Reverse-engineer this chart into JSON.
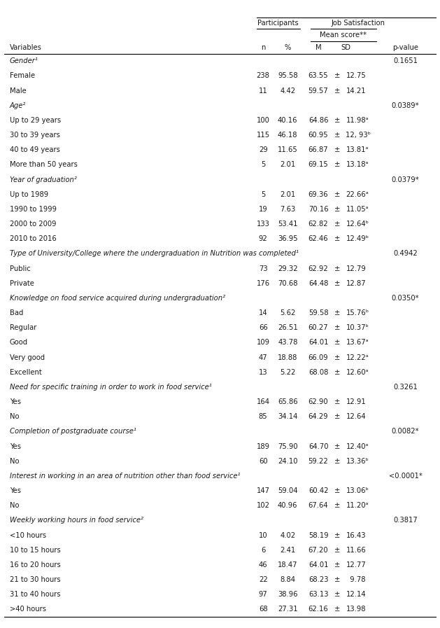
{
  "rows": [
    {
      "label": "Gender¹",
      "n": "",
      "pct": "",
      "M": "",
      "pm": "",
      "SD": "",
      "pvalue": "0.1651",
      "type": "category"
    },
    {
      "label": "Female",
      "n": "238",
      "pct": "95.58",
      "M": "63.55",
      "pm": "±",
      "SD": "12.75",
      "pvalue": "",
      "type": "data"
    },
    {
      "label": "Male",
      "n": "11",
      "pct": "4.42",
      "M": "59.57",
      "pm": "±",
      "SD": "14.21",
      "pvalue": "",
      "type": "data"
    },
    {
      "label": "Age²",
      "n": "",
      "pct": "",
      "M": "",
      "pm": "",
      "SD": "",
      "pvalue": "0.0389*",
      "type": "category"
    },
    {
      "label": "Up to 29 years",
      "n": "100",
      "pct": "40.16",
      "M": "64.86",
      "pm": "±",
      "SD": "11.98ᵃ",
      "pvalue": "",
      "type": "data"
    },
    {
      "label": "30 to 39 years",
      "n": "115",
      "pct": "46.18",
      "M": "60.95",
      "pm": "±",
      "SD": "12, 93ᵇ",
      "pvalue": "",
      "type": "data"
    },
    {
      "label": "40 to 49 years",
      "n": "29",
      "pct": "11.65",
      "M": "66.87",
      "pm": "±",
      "SD": "13.81ᵃ",
      "pvalue": "",
      "type": "data"
    },
    {
      "label": "More than 50 years",
      "n": "5",
      "pct": "2.01",
      "M": "69.15",
      "pm": "±",
      "SD": "13.18ᵃ",
      "pvalue": "",
      "type": "data"
    },
    {
      "label": "Year of graduation²",
      "n": "",
      "pct": "",
      "M": "",
      "pm": "",
      "SD": "",
      "pvalue": "0.0379*",
      "type": "category"
    },
    {
      "label": "Up to 1989",
      "n": "5",
      "pct": "2.01",
      "M": "69.36",
      "pm": "±",
      "SD": "22.66ᵃ",
      "pvalue": "",
      "type": "data"
    },
    {
      "label": "1990 to 1999",
      "n": "19",
      "pct": "7.63",
      "M": "70.16",
      "pm": "±",
      "SD": "11.05ᵃ",
      "pvalue": "",
      "type": "data"
    },
    {
      "label": "2000 to 2009",
      "n": "133",
      "pct": "53.41",
      "M": "62.82",
      "pm": "±",
      "SD": "12.64ᵇ",
      "pvalue": "",
      "type": "data"
    },
    {
      "label": "2010 to 2016",
      "n": "92",
      "pct": "36.95",
      "M": "62.46",
      "pm": "±",
      "SD": "12.49ᵇ",
      "pvalue": "",
      "type": "data"
    },
    {
      "label": "Type of University/College where the undergraduation in Nutrition was completed¹",
      "n": "",
      "pct": "",
      "M": "",
      "pm": "",
      "SD": "",
      "pvalue": "0.4942",
      "type": "category"
    },
    {
      "label": "Public",
      "n": "73",
      "pct": "29.32",
      "M": "62.92",
      "pm": "±",
      "SD": "12.79",
      "pvalue": "",
      "type": "data"
    },
    {
      "label": "Private",
      "n": "176",
      "pct": "70.68",
      "M": "64.48",
      "pm": "±",
      "SD": "12.87",
      "pvalue": "",
      "type": "data"
    },
    {
      "label": "Knowledge on food service acquired during undergraduation²",
      "n": "",
      "pct": "",
      "M": "",
      "pm": "",
      "SD": "",
      "pvalue": "0.0350*",
      "type": "category"
    },
    {
      "label": "Bad",
      "n": "14",
      "pct": "5.62",
      "M": "59.58",
      "pm": "±",
      "SD": "15.76ᵇ",
      "pvalue": "",
      "type": "data"
    },
    {
      "label": "Regular",
      "n": "66",
      "pct": "26.51",
      "M": "60.27",
      "pm": "±",
      "SD": "10.37ᵇ",
      "pvalue": "",
      "type": "data"
    },
    {
      "label": "Good",
      "n": "109",
      "pct": "43.78",
      "M": "64.01",
      "pm": "±",
      "SD": "13.67ᵃ",
      "pvalue": "",
      "type": "data"
    },
    {
      "label": "Very good",
      "n": "47",
      "pct": "18.88",
      "M": "66.09",
      "pm": "±",
      "SD": "12.22ᵃ",
      "pvalue": "",
      "type": "data"
    },
    {
      "label": "Excellent",
      "n": "13",
      "pct": "5.22",
      "M": "68.08",
      "pm": "±",
      "SD": "12.60ᵃ",
      "pvalue": "",
      "type": "data"
    },
    {
      "label": "Need for specific training in order to work in food service¹",
      "n": "",
      "pct": "",
      "M": "",
      "pm": "",
      "SD": "",
      "pvalue": "0.3261",
      "type": "category"
    },
    {
      "label": "Yes",
      "n": "164",
      "pct": "65.86",
      "M": "62.90",
      "pm": "±",
      "SD": "12.91",
      "pvalue": "",
      "type": "data"
    },
    {
      "label": "No",
      "n": "85",
      "pct": "34.14",
      "M": "64.29",
      "pm": "±",
      "SD": "12.64",
      "pvalue": "",
      "type": "data"
    },
    {
      "label": "Completion of postgraduate course¹",
      "n": "",
      "pct": "",
      "M": "",
      "pm": "",
      "SD": "",
      "pvalue": "0.0082*",
      "type": "category"
    },
    {
      "label": "Yes",
      "n": "189",
      "pct": "75.90",
      "M": "64.70",
      "pm": "±",
      "SD": "12.40ᵃ",
      "pvalue": "",
      "type": "data"
    },
    {
      "label": "No",
      "n": "60",
      "pct": "24.10",
      "M": "59.22",
      "pm": "±",
      "SD": "13.36ᵇ",
      "pvalue": "",
      "type": "data"
    },
    {
      "label": "Interest in working in an area of nutrition other than food service¹",
      "n": "",
      "pct": "",
      "M": "",
      "pm": "",
      "SD": "",
      "pvalue": "<0.0001*",
      "type": "category"
    },
    {
      "label": "Yes",
      "n": "147",
      "pct": "59.04",
      "M": "60.42",
      "pm": "±",
      "SD": "13.06ᵇ",
      "pvalue": "",
      "type": "data"
    },
    {
      "label": "No",
      "n": "102",
      "pct": "40.96",
      "M": "67.64",
      "pm": "±",
      "SD": "11.20ᵃ",
      "pvalue": "",
      "type": "data"
    },
    {
      "label": "Weekly working hours in food service²",
      "n": "",
      "pct": "",
      "M": "",
      "pm": "",
      "SD": "",
      "pvalue": "0.3817",
      "type": "category"
    },
    {
      "label": "<10 hours",
      "n": "10",
      "pct": "4.02",
      "M": "58.19",
      "pm": "±",
      "SD": "16.43",
      "pvalue": "",
      "type": "data"
    },
    {
      "label": "10 to 15 hours",
      "n": "6",
      "pct": "2.41",
      "M": "67.20",
      "pm": "±",
      "SD": "11.66",
      "pvalue": "",
      "type": "data"
    },
    {
      "label": "16 to 20 hours",
      "n": "46",
      "pct": "18.47",
      "M": "64.01",
      "pm": "±",
      "SD": "12.77",
      "pvalue": "",
      "type": "data"
    },
    {
      "label": "21 to 30 hours",
      "n": "22",
      "pct": "8.84",
      "M": "68.23",
      "pm": "±",
      "SD": "  9.78",
      "pvalue": "",
      "type": "data"
    },
    {
      "label": "31 to 40 hours",
      "n": "97",
      "pct": "38.96",
      "M": "63.13",
      "pm": "±",
      "SD": "12.14",
      "pvalue": "",
      "type": "data"
    },
    {
      ">40 hours": ">40 hours",
      "label": ">40 hours",
      "n": "68",
      "pct": "27.31",
      "M": "62.16",
      "pm": "±",
      "SD": "13.98",
      "pvalue": "",
      "type": "data"
    }
  ],
  "col_x": {
    "label": 0.012,
    "n": 0.6,
    "pct": 0.657,
    "M": 0.728,
    "pm": 0.772,
    "SD": 0.792,
    "pvalue": 0.93
  },
  "font_size": 7.2,
  "bg_color": "#ffffff",
  "text_color": "#1a1a1a",
  "line_color": "#000000"
}
